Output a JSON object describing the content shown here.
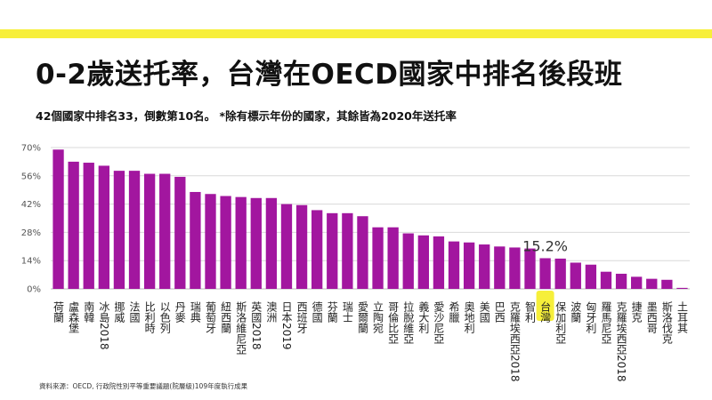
{
  "title": "0-2歲送托率，台灣在OECD國家中排名後段班",
  "subtitle": "42個國家中排名33，倒數第10名。 *除有標示年份的國家，其餘皆為2020年送托率",
  "source": "資料來源：OECD, 行政院性別平等重要議題(院層級)109年度執行成果",
  "colors": {
    "bar": "#a2169f",
    "highlight": "#f6ef3a",
    "banner": "#f7ef3a",
    "grid": "#d9d9d9"
  },
  "chart_data": {
    "type": "bar",
    "categories": [
      "荷蘭",
      "盧森堡",
      "南韓",
      "冰島2018",
      "挪威",
      "法國",
      "比利時",
      "以色列",
      "丹麥",
      "瑞典",
      "葡萄牙",
      "紐西蘭",
      "斯洛維尼亞",
      "英國2018",
      "澳洲",
      "日本2019",
      "西班牙",
      "德國",
      "芬蘭",
      "瑞士",
      "愛爾蘭",
      "立陶宛",
      "哥倫比亞",
      "拉脫維亞",
      "義大利",
      "愛沙尼亞",
      "希臘",
      "奧地利",
      "美國",
      "巴西",
      "克羅埃西亞2018",
      "智利",
      "台灣",
      "保加利亞",
      "波蘭",
      "匈牙利",
      "羅馬尼亞",
      "克羅埃西亞2018",
      "捷克",
      "墨西哥",
      "斯洛伐克",
      "土耳其"
    ],
    "values": [
      69,
      63,
      62.5,
      61,
      58.5,
      58.5,
      57,
      57,
      55.5,
      48,
      47,
      46,
      45.5,
      45,
      45,
      42,
      41.5,
      39,
      37.5,
      37.5,
      36,
      30.5,
      30.5,
      27.5,
      26.5,
      26,
      23.5,
      23,
      22,
      21,
      20.5,
      20,
      15.2,
      15,
      13,
      12,
      8.5,
      7.5,
      6,
      5,
      4.5,
      0.5
    ],
    "highlight_category": "台灣",
    "annotation": "15.2%",
    "yticks": [
      "70%",
      "56%",
      "42%",
      "28%",
      "14%",
      "0%"
    ],
    "ylim": [
      0,
      70
    ],
    "xlabel": "",
    "ylabel": "",
    "grid": true
  }
}
